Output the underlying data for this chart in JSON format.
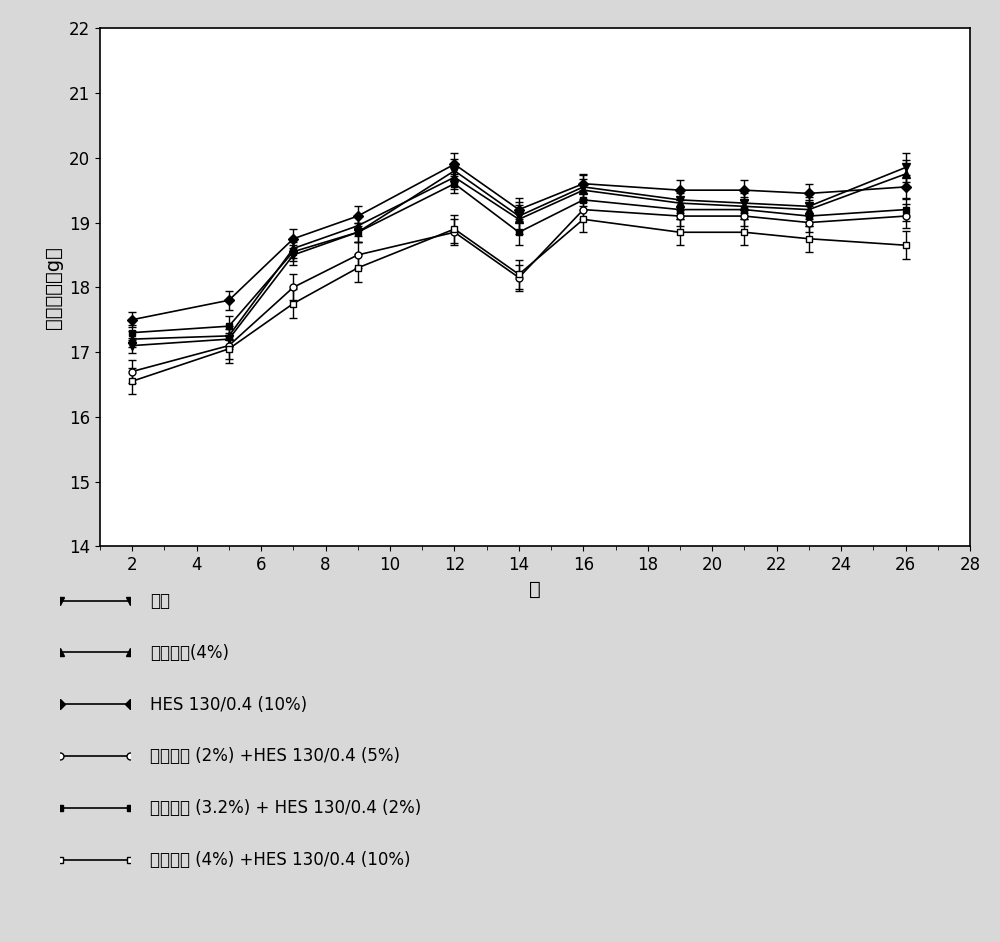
{
  "x_days": [
    2,
    5,
    7,
    9,
    12,
    14,
    16,
    19,
    21,
    23,
    26
  ],
  "series": [
    {
      "label": "对照",
      "marker": "v",
      "marker_size": 6,
      "color": "#000000",
      "linestyle": "-",
      "marker_facecolor": "#000000",
      "y": [
        17.1,
        17.2,
        18.5,
        18.85,
        19.8,
        19.1,
        19.55,
        19.35,
        19.3,
        19.25,
        19.85
      ],
      "yerr": [
        0.12,
        0.15,
        0.15,
        0.15,
        0.18,
        0.22,
        0.18,
        0.15,
        0.15,
        0.15,
        0.22
      ]
    },
    {
      "label": "艾考糊精(4%)",
      "marker": "^",
      "marker_size": 6,
      "color": "#000000",
      "linestyle": "-",
      "marker_facecolor": "#000000",
      "y": [
        17.2,
        17.25,
        18.6,
        18.95,
        19.7,
        19.05,
        19.5,
        19.3,
        19.25,
        19.2,
        19.75
      ],
      "yerr": [
        0.12,
        0.15,
        0.15,
        0.15,
        0.18,
        0.22,
        0.18,
        0.15,
        0.15,
        0.15,
        0.22
      ]
    },
    {
      "label": "HES 130/0.4 (10%)",
      "marker": "D",
      "marker_size": 5,
      "color": "#000000",
      "linestyle": "-",
      "marker_facecolor": "#000000",
      "y": [
        17.5,
        17.8,
        18.75,
        19.1,
        19.9,
        19.2,
        19.6,
        19.5,
        19.5,
        19.45,
        19.55
      ],
      "yerr": [
        0.12,
        0.15,
        0.15,
        0.15,
        0.18,
        0.18,
        0.15,
        0.15,
        0.15,
        0.15,
        0.18
      ]
    },
    {
      "label": "艾考糊精 (2%) +HES 130/0.4 (5%)",
      "marker": "o",
      "marker_size": 5,
      "color": "#000000",
      "linestyle": "-",
      "marker_facecolor": "#ffffff",
      "y": [
        16.7,
        17.1,
        18.0,
        18.5,
        18.85,
        18.15,
        19.2,
        19.1,
        19.1,
        19.0,
        19.1
      ],
      "yerr": [
        0.18,
        0.2,
        0.2,
        0.2,
        0.2,
        0.2,
        0.15,
        0.15,
        0.15,
        0.15,
        0.18
      ]
    },
    {
      "label": "艾考糊精 (3.2%) + HES 130/0.4 (2%)",
      "marker": "s",
      "marker_size": 5,
      "color": "#000000",
      "linestyle": "-",
      "marker_facecolor": "#000000",
      "y": [
        17.3,
        17.4,
        18.55,
        18.85,
        19.6,
        18.85,
        19.35,
        19.2,
        19.2,
        19.1,
        19.2
      ],
      "yerr": [
        0.12,
        0.15,
        0.15,
        0.15,
        0.15,
        0.2,
        0.15,
        0.15,
        0.15,
        0.15,
        0.18
      ]
    },
    {
      "label": "艾考糊精 (4%) +HES 130/0.4 (10%)",
      "marker": "s",
      "marker_size": 5,
      "color": "#000000",
      "linestyle": "-",
      "marker_facecolor": "#ffffff",
      "y": [
        16.55,
        17.05,
        17.75,
        18.3,
        18.9,
        18.2,
        19.05,
        18.85,
        18.85,
        18.75,
        18.65
      ],
      "yerr": [
        0.2,
        0.22,
        0.22,
        0.22,
        0.22,
        0.22,
        0.2,
        0.2,
        0.2,
        0.2,
        0.22
      ]
    }
  ],
  "xlabel": "天",
  "ylabel": "动物体重（g）",
  "xlim": [
    1,
    28
  ],
  "ylim": [
    14,
    22
  ],
  "xticks": [
    2,
    4,
    6,
    8,
    10,
    12,
    14,
    16,
    18,
    20,
    22,
    24,
    26,
    28
  ],
  "yticks": [
    14,
    15,
    16,
    17,
    18,
    19,
    20,
    21,
    22
  ],
  "background_color": "#d8d8d8",
  "plot_bg_color": "#ffffff",
  "font_size": 14,
  "tick_fontsize": 12,
  "legend_fontsize": 12
}
